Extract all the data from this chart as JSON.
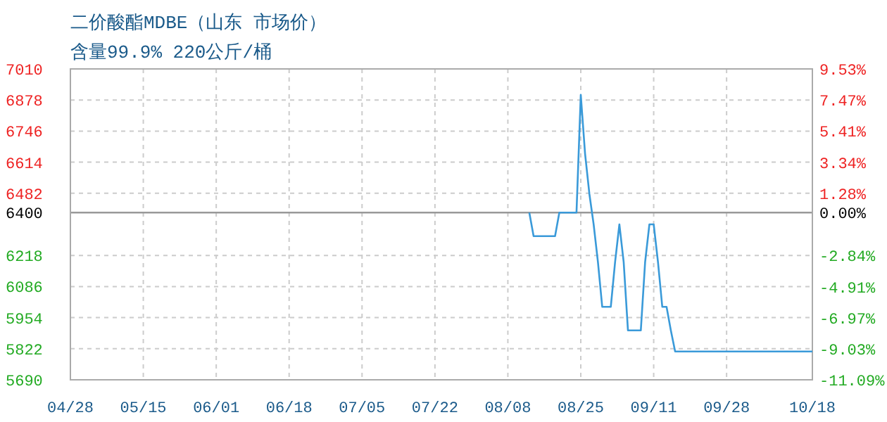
{
  "chart_data": {
    "type": "line",
    "title": "二价酸酯MDBE（山东 市场价）",
    "subtitle": "含量99.9% 220公斤/桶",
    "x": [
      "--08-13",
      "--08-14",
      "--08-19",
      "--08-20",
      "--08-24",
      "--08-25",
      "--08-26",
      "--08-27",
      "--08-28",
      "--08-29",
      "--08-30",
      "--09-01",
      "--09-02",
      "--09-03",
      "--09-04",
      "--09-05",
      "--09-08",
      "--09-09",
      "--09-10",
      "--09-11",
      "--09-12",
      "--09-13",
      "--09-14",
      "--09-15",
      "--09-16",
      "--10-18"
    ],
    "series": [
      {
        "color": "#3a9ad9",
        "values": [
          6400,
          6300,
          6300,
          6400,
          6400,
          6900,
          6650,
          6480,
          6350,
          6190,
          6000,
          6000,
          6190,
          6350,
          6190,
          5900,
          5900,
          6190,
          6350,
          6350,
          6190,
          6000,
          6000,
          5900,
          5810,
          5810
        ]
      }
    ],
    "xlim": [
      "--04-28",
      "--10-18"
    ],
    "xticks": [
      {
        "value": "--04-28",
        "label": "04/28"
      },
      {
        "value": "--05-15",
        "label": "05/15"
      },
      {
        "value": "--06-01",
        "label": "06/01"
      },
      {
        "value": "--06-18",
        "label": "06/18"
      },
      {
        "value": "--07-05",
        "label": "07/05"
      },
      {
        "value": "--07-22",
        "label": "07/22"
      },
      {
        "value": "--08-08",
        "label": "08/08"
      },
      {
        "value": "--08-25",
        "label": "08/25"
      },
      {
        "value": "--09-11",
        "label": "09/11"
      },
      {
        "value": "--09-28",
        "label": "09/28"
      },
      {
        "value": "--10-18",
        "label": "10/18"
      }
    ],
    "ylim": [
      5690,
      7010
    ],
    "yticks": [
      5690,
      5822,
      5954,
      6086,
      6218,
      6400,
      6482,
      6614,
      6746,
      6878,
      7010
    ],
    "y2lim": [
      -11.09,
      9.53
    ],
    "y2ticks": [
      {
        "value": -11.09,
        "label": "-11.09%"
      },
      {
        "value": -9.03,
        "label": "-9.03%"
      },
      {
        "value": -6.97,
        "label": "-6.97%"
      },
      {
        "value": -4.91,
        "label": "-4.91%"
      },
      {
        "value": -2.84,
        "label": "-2.84%"
      },
      {
        "value": 0,
        "label": "0.00%"
      },
      {
        "value": 1.28,
        "label": "1.28%"
      },
      {
        "value": 3.34,
        "label": "3.34%"
      },
      {
        "value": 5.41,
        "label": "5.41%"
      },
      {
        "value": 7.47,
        "label": "7.47%"
      },
      {
        "value": 9.53,
        "label": "9.53%"
      }
    ],
    "ref_lines": [
      {
        "axis": "y",
        "value": 6400,
        "color": "#999999"
      }
    ],
    "grid": true
  }
}
